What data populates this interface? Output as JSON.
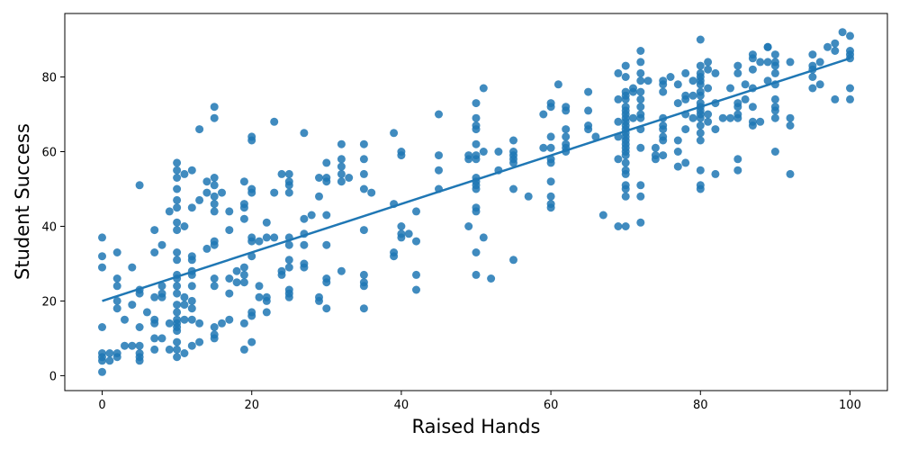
{
  "chart_data": {
    "type": "scatter",
    "title": "",
    "xlabel": "Raised Hands",
    "ylabel": "Student Success",
    "xlim": [
      -5,
      105
    ],
    "ylim": [
      -4,
      97
    ],
    "xticks": [
      0,
      20,
      40,
      60,
      80,
      100
    ],
    "yticks": [
      0,
      20,
      40,
      60,
      80
    ],
    "xtick_labels": [
      "0",
      "20",
      "40",
      "60",
      "80",
      "100"
    ],
    "ytick_labels": [
      "0",
      "20",
      "40",
      "60",
      "80"
    ],
    "grid": false,
    "legend": "none",
    "point_color": "#1f77b4",
    "line_color": "#1f77b4",
    "regression_line": {
      "x": [
        0,
        100
      ],
      "y": [
        20,
        85
      ]
    },
    "points": [
      [
        0,
        1
      ],
      [
        0,
        4
      ],
      [
        0,
        5
      ],
      [
        0,
        6
      ],
      [
        0,
        13
      ],
      [
        0,
        29
      ],
      [
        0,
        32
      ],
      [
        0,
        37
      ],
      [
        1,
        4
      ],
      [
        1,
        6
      ],
      [
        2,
        5
      ],
      [
        2,
        6
      ],
      [
        2,
        18
      ],
      [
        2,
        20
      ],
      [
        2,
        24
      ],
      [
        2,
        26
      ],
      [
        2,
        33
      ],
      [
        3,
        8
      ],
      [
        3,
        15
      ],
      [
        4,
        8
      ],
      [
        4,
        19
      ],
      [
        4,
        29
      ],
      [
        5,
        4
      ],
      [
        5,
        5
      ],
      [
        5,
        6
      ],
      [
        5,
        8
      ],
      [
        5,
        13
      ],
      [
        5,
        22
      ],
      [
        5,
        23
      ],
      [
        5,
        51
      ],
      [
        6,
        17
      ],
      [
        7,
        7
      ],
      [
        7,
        10
      ],
      [
        7,
        14
      ],
      [
        7,
        15
      ],
      [
        7,
        21
      ],
      [
        7,
        33
      ],
      [
        7,
        39
      ],
      [
        8,
        10
      ],
      [
        8,
        21
      ],
      [
        8,
        22
      ],
      [
        8,
        24
      ],
      [
        8,
        35
      ],
      [
        9,
        7
      ],
      [
        9,
        14
      ],
      [
        9,
        44
      ],
      [
        10,
        5
      ],
      [
        10,
        7
      ],
      [
        10,
        9
      ],
      [
        10,
        12
      ],
      [
        10,
        13
      ],
      [
        10,
        14
      ],
      [
        10,
        15
      ],
      [
        10,
        17
      ],
      [
        10,
        19
      ],
      [
        10,
        22
      ],
      [
        10,
        24
      ],
      [
        10,
        26
      ],
      [
        10,
        27
      ],
      [
        10,
        31
      ],
      [
        10,
        33
      ],
      [
        10,
        39
      ],
      [
        10,
        41
      ],
      [
        10,
        45
      ],
      [
        10,
        47
      ],
      [
        10,
        50
      ],
      [
        10,
        53
      ],
      [
        10,
        55
      ],
      [
        10,
        57
      ],
      [
        11,
        6
      ],
      [
        11,
        15
      ],
      [
        11,
        19
      ],
      [
        11,
        21
      ],
      [
        11,
        40
      ],
      [
        11,
        54
      ],
      [
        12,
        8
      ],
      [
        12,
        15
      ],
      [
        12,
        18
      ],
      [
        12,
        20
      ],
      [
        12,
        24
      ],
      [
        12,
        27
      ],
      [
        12,
        28
      ],
      [
        12,
        31
      ],
      [
        12,
        32
      ],
      [
        12,
        45
      ],
      [
        12,
        55
      ],
      [
        13,
        9
      ],
      [
        13,
        14
      ],
      [
        13,
        47
      ],
      [
        13,
        66
      ],
      [
        14,
        34
      ],
      [
        14,
        49
      ],
      [
        14,
        52
      ],
      [
        15,
        10
      ],
      [
        15,
        11
      ],
      [
        15,
        13
      ],
      [
        15,
        24
      ],
      [
        15,
        26
      ],
      [
        15,
        35
      ],
      [
        15,
        36
      ],
      [
        15,
        44
      ],
      [
        15,
        46
      ],
      [
        15,
        48
      ],
      [
        15,
        51
      ],
      [
        15,
        53
      ],
      [
        15,
        69
      ],
      [
        15,
        72
      ],
      [
        16,
        14
      ],
      [
        16,
        49
      ],
      [
        17,
        15
      ],
      [
        17,
        22
      ],
      [
        17,
        26
      ],
      [
        17,
        39
      ],
      [
        17,
        44
      ],
      [
        18,
        25
      ],
      [
        18,
        28
      ],
      [
        19,
        7
      ],
      [
        19,
        14
      ],
      [
        19,
        25
      ],
      [
        19,
        27
      ],
      [
        19,
        29
      ],
      [
        19,
        42
      ],
      [
        19,
        45
      ],
      [
        19,
        46
      ],
      [
        19,
        52
      ],
      [
        20,
        9
      ],
      [
        20,
        16
      ],
      [
        20,
        17
      ],
      [
        20,
        32
      ],
      [
        20,
        36
      ],
      [
        20,
        37
      ],
      [
        20,
        49
      ],
      [
        20,
        50
      ],
      [
        20,
        63
      ],
      [
        20,
        64
      ],
      [
        21,
        21
      ],
      [
        21,
        24
      ],
      [
        21,
        36
      ],
      [
        22,
        17
      ],
      [
        22,
        20
      ],
      [
        22,
        21
      ],
      [
        22,
        37
      ],
      [
        22,
        41
      ],
      [
        23,
        37
      ],
      [
        23,
        49
      ],
      [
        23,
        68
      ],
      [
        24,
        27
      ],
      [
        24,
        28
      ],
      [
        24,
        54
      ],
      [
        25,
        21
      ],
      [
        25,
        22
      ],
      [
        25,
        23
      ],
      [
        25,
        29
      ],
      [
        25,
        31
      ],
      [
        25,
        35
      ],
      [
        25,
        37
      ],
      [
        25,
        49
      ],
      [
        25,
        51
      ],
      [
        25,
        52
      ],
      [
        25,
        54
      ],
      [
        27,
        29
      ],
      [
        27,
        30
      ],
      [
        27,
        35
      ],
      [
        27,
        38
      ],
      [
        27,
        42
      ],
      [
        27,
        65
      ],
      [
        28,
        43
      ],
      [
        29,
        20
      ],
      [
        29,
        21
      ],
      [
        29,
        48
      ],
      [
        29,
        53
      ],
      [
        30,
        18
      ],
      [
        30,
        25
      ],
      [
        30,
        26
      ],
      [
        30,
        35
      ],
      [
        30,
        43
      ],
      [
        30,
        52
      ],
      [
        30,
        53
      ],
      [
        30,
        57
      ],
      [
        32,
        28
      ],
      [
        32,
        52
      ],
      [
        32,
        54
      ],
      [
        32,
        56
      ],
      [
        32,
        58
      ],
      [
        32,
        62
      ],
      [
        33,
        53
      ],
      [
        35,
        18
      ],
      [
        35,
        24
      ],
      [
        35,
        25
      ],
      [
        35,
        27
      ],
      [
        35,
        39
      ],
      [
        35,
        50
      ],
      [
        35,
        54
      ],
      [
        35,
        58
      ],
      [
        35,
        62
      ],
      [
        36,
        49
      ],
      [
        39,
        32
      ],
      [
        39,
        33
      ],
      [
        39,
        46
      ],
      [
        39,
        65
      ],
      [
        40,
        37
      ],
      [
        40,
        38
      ],
      [
        40,
        40
      ],
      [
        40,
        59
      ],
      [
        40,
        60
      ],
      [
        41,
        38
      ],
      [
        42,
        23
      ],
      [
        42,
        27
      ],
      [
        42,
        36
      ],
      [
        42,
        44
      ],
      [
        45,
        50
      ],
      [
        45,
        55
      ],
      [
        45,
        59
      ],
      [
        45,
        70
      ],
      [
        49,
        40
      ],
      [
        49,
        58
      ],
      [
        49,
        59
      ],
      [
        50,
        27
      ],
      [
        50,
        33
      ],
      [
        50,
        44
      ],
      [
        50,
        45
      ],
      [
        50,
        50
      ],
      [
        50,
        51
      ],
      [
        50,
        52
      ],
      [
        50,
        53
      ],
      [
        50,
        58
      ],
      [
        50,
        59
      ],
      [
        50,
        62
      ],
      [
        50,
        66
      ],
      [
        50,
        67
      ],
      [
        50,
        69
      ],
      [
        50,
        73
      ],
      [
        51,
        37
      ],
      [
        51,
        60
      ],
      [
        51,
        77
      ],
      [
        52,
        26
      ],
      [
        53,
        55
      ],
      [
        53,
        60
      ],
      [
        55,
        31
      ],
      [
        55,
        50
      ],
      [
        55,
        57
      ],
      [
        55,
        58
      ],
      [
        55,
        59
      ],
      [
        55,
        60
      ],
      [
        55,
        63
      ],
      [
        57,
        48
      ],
      [
        59,
        61
      ],
      [
        59,
        70
      ],
      [
        60,
        45
      ],
      [
        60,
        46
      ],
      [
        60,
        48
      ],
      [
        60,
        52
      ],
      [
        60,
        57
      ],
      [
        60,
        58
      ],
      [
        60,
        61
      ],
      [
        60,
        64
      ],
      [
        60,
        72
      ],
      [
        60,
        73
      ],
      [
        61,
        78
      ],
      [
        62,
        60
      ],
      [
        62,
        61
      ],
      [
        62,
        62
      ],
      [
        62,
        64
      ],
      [
        62,
        66
      ],
      [
        62,
        71
      ],
      [
        62,
        72
      ],
      [
        65,
        66
      ],
      [
        65,
        67
      ],
      [
        65,
        71
      ],
      [
        65,
        76
      ],
      [
        66,
        64
      ],
      [
        67,
        43
      ],
      [
        69,
        40
      ],
      [
        69,
        58
      ],
      [
        69,
        64
      ],
      [
        69,
        68
      ],
      [
        69,
        74
      ],
      [
        69,
        81
      ],
      [
        70,
        40
      ],
      [
        70,
        48
      ],
      [
        70,
        50
      ],
      [
        70,
        51
      ],
      [
        70,
        54
      ],
      [
        70,
        55
      ],
      [
        70,
        57
      ],
      [
        70,
        59
      ],
      [
        70,
        60
      ],
      [
        70,
        61
      ],
      [
        70,
        62
      ],
      [
        70,
        63
      ],
      [
        70,
        64
      ],
      [
        70,
        65
      ],
      [
        70,
        66
      ],
      [
        70,
        67
      ],
      [
        70,
        68
      ],
      [
        70,
        69
      ],
      [
        70,
        70
      ],
      [
        70,
        71
      ],
      [
        70,
        72
      ],
      [
        70,
        74
      ],
      [
        70,
        75
      ],
      [
        70,
        76
      ],
      [
        70,
        80
      ],
      [
        70,
        83
      ],
      [
        71,
        69
      ],
      [
        71,
        76
      ],
      [
        71,
        77
      ],
      [
        72,
        41
      ],
      [
        72,
        48
      ],
      [
        72,
        51
      ],
      [
        72,
        61
      ],
      [
        72,
        66
      ],
      [
        72,
        69
      ],
      [
        72,
        70
      ],
      [
        72,
        72
      ],
      [
        72,
        74
      ],
      [
        72,
        76
      ],
      [
        72,
        79
      ],
      [
        72,
        81
      ],
      [
        72,
        84
      ],
      [
        72,
        87
      ],
      [
        73,
        79
      ],
      [
        74,
        58
      ],
      [
        74,
        59
      ],
      [
        74,
        61
      ],
      [
        75,
        59
      ],
      [
        75,
        63
      ],
      [
        75,
        64
      ],
      [
        75,
        66
      ],
      [
        75,
        67
      ],
      [
        75,
        69
      ],
      [
        75,
        76
      ],
      [
        75,
        78
      ],
      [
        75,
        79
      ],
      [
        76,
        80
      ],
      [
        77,
        56
      ],
      [
        77,
        60
      ],
      [
        77,
        63
      ],
      [
        77,
        73
      ],
      [
        77,
        78
      ],
      [
        78,
        57
      ],
      [
        78,
        66
      ],
      [
        78,
        70
      ],
      [
        78,
        74
      ],
      [
        78,
        75
      ],
      [
        78,
        81
      ],
      [
        79,
        69
      ],
      [
        79,
        75
      ],
      [
        79,
        79
      ],
      [
        80,
        50
      ],
      [
        80,
        51
      ],
      [
        80,
        55
      ],
      [
        80,
        63
      ],
      [
        80,
        65
      ],
      [
        80,
        67
      ],
      [
        80,
        69
      ],
      [
        80,
        70
      ],
      [
        80,
        71
      ],
      [
        80,
        72
      ],
      [
        80,
        73
      ],
      [
        80,
        75
      ],
      [
        80,
        76
      ],
      [
        80,
        78
      ],
      [
        80,
        79
      ],
      [
        80,
        80
      ],
      [
        80,
        81
      ],
      [
        80,
        83
      ],
      [
        80,
        90
      ],
      [
        81,
        68
      ],
      [
        81,
        70
      ],
      [
        81,
        77
      ],
      [
        81,
        82
      ],
      [
        81,
        84
      ],
      [
        82,
        54
      ],
      [
        82,
        66
      ],
      [
        82,
        73
      ],
      [
        82,
        81
      ],
      [
        83,
        69
      ],
      [
        84,
        69
      ],
      [
        84,
        77
      ],
      [
        85,
        55
      ],
      [
        85,
        58
      ],
      [
        85,
        69
      ],
      [
        85,
        70
      ],
      [
        85,
        72
      ],
      [
        85,
        73
      ],
      [
        85,
        81
      ],
      [
        85,
        83
      ],
      [
        86,
        74
      ],
      [
        86,
        78
      ],
      [
        87,
        67
      ],
      [
        87,
        68
      ],
      [
        87,
        72
      ],
      [
        87,
        77
      ],
      [
        87,
        82
      ],
      [
        87,
        85
      ],
      [
        87,
        86
      ],
      [
        88,
        68
      ],
      [
        88,
        84
      ],
      [
        89,
        79
      ],
      [
        89,
        84
      ],
      [
        89,
        88
      ],
      [
        89,
        88
      ],
      [
        90,
        60
      ],
      [
        90,
        69
      ],
      [
        90,
        71
      ],
      [
        90,
        72
      ],
      [
        90,
        74
      ],
      [
        90,
        78
      ],
      [
        90,
        81
      ],
      [
        90,
        83
      ],
      [
        90,
        84
      ],
      [
        90,
        86
      ],
      [
        92,
        54
      ],
      [
        92,
        67
      ],
      [
        92,
        69
      ],
      [
        92,
        84
      ],
      [
        95,
        77
      ],
      [
        95,
        80
      ],
      [
        95,
        82
      ],
      [
        95,
        83
      ],
      [
        95,
        86
      ],
      [
        96,
        78
      ],
      [
        96,
        84
      ],
      [
        97,
        88
      ],
      [
        98,
        74
      ],
      [
        98,
        87
      ],
      [
        98,
        89
      ],
      [
        99,
        92
      ],
      [
        100,
        74
      ],
      [
        100,
        77
      ],
      [
        100,
        85
      ],
      [
        100,
        86
      ],
      [
        100,
        87
      ],
      [
        100,
        91
      ]
    ]
  }
}
